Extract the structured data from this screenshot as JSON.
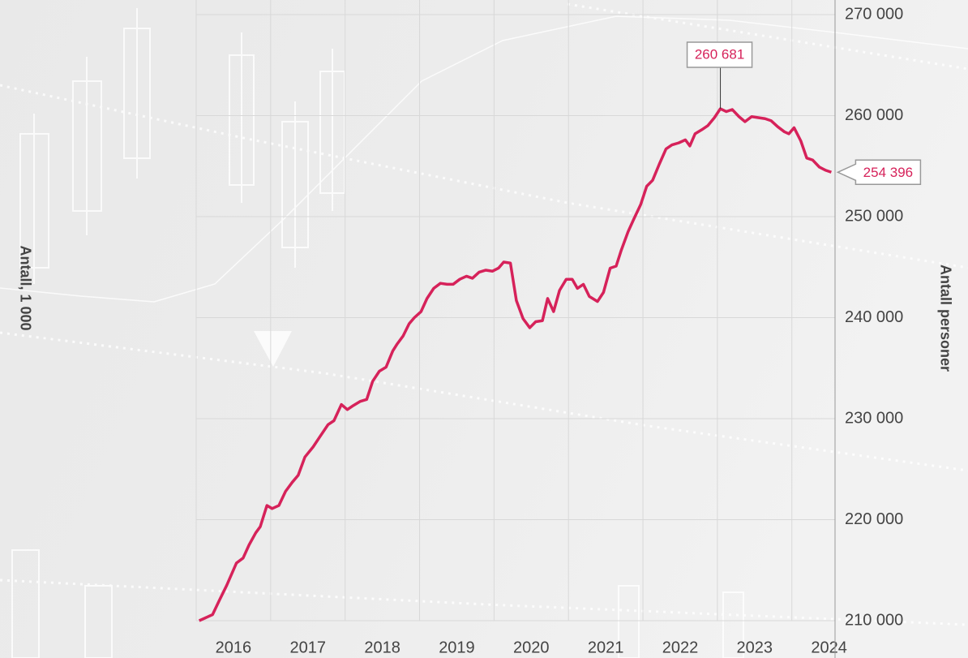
{
  "chart_data": {
    "type": "line",
    "y_label_left": "Antall, 1 000",
    "y_label_right": "Antall personer",
    "xlim": [
      2016,
      2024.58
    ],
    "ylim": [
      210000,
      270000
    ],
    "xticks": [
      {
        "value": 2016,
        "label": "2016"
      },
      {
        "value": 2017,
        "label": "2017"
      },
      {
        "value": 2018,
        "label": "2018"
      },
      {
        "value": 2019,
        "label": "2019"
      },
      {
        "value": 2020,
        "label": "2020"
      },
      {
        "value": 2021,
        "label": "2021"
      },
      {
        "value": 2022,
        "label": "2022"
      },
      {
        "value": 2023,
        "label": "2023"
      },
      {
        "value": 2024,
        "label": "2024"
      }
    ],
    "yticks": [
      {
        "value": 210000,
        "label": "210 000"
      },
      {
        "value": 220000,
        "label": "220 000"
      },
      {
        "value": 230000,
        "label": "230 000"
      },
      {
        "value": 240000,
        "label": "240 000"
      },
      {
        "value": 250000,
        "label": "250 000"
      },
      {
        "value": 260000,
        "label": "260 000"
      },
      {
        "value": 270000,
        "label": "270 000"
      }
    ],
    "grid": true,
    "series": [
      {
        "color": "#d6225a",
        "x": [
          2016.04,
          2016.22,
          2016.31,
          2016.41,
          2016.54,
          2016.63,
          2016.71,
          2016.8,
          2016.86,
          2016.95,
          2017.02,
          2017.11,
          2017.2,
          2017.29,
          2017.37,
          2017.46,
          2017.57,
          2017.66,
          2017.77,
          2017.85,
          2017.95,
          2018.03,
          2018.11,
          2018.2,
          2018.29,
          2018.37,
          2018.46,
          2018.55,
          2018.64,
          2018.7,
          2018.78,
          2018.86,
          2018.93,
          2019.02,
          2019.1,
          2019.19,
          2019.28,
          2019.37,
          2019.45,
          2019.54,
          2019.63,
          2019.71,
          2019.8,
          2019.89,
          2019.98,
          2020.06,
          2020.13,
          2020.22,
          2020.3,
          2020.39,
          2020.48,
          2020.56,
          2020.65,
          2020.72,
          2020.8,
          2020.88,
          2020.97,
          2021.05,
          2021.12,
          2021.2,
          2021.28,
          2021.39,
          2021.47,
          2021.56,
          2021.64,
          2021.71,
          2021.8,
          2021.88,
          2021.97,
          2022.05,
          2022.13,
          2022.22,
          2022.31,
          2022.39,
          2022.48,
          2022.57,
          2022.63,
          2022.7,
          2022.79,
          2022.87,
          2022.96,
          2023.04,
          2023.12,
          2023.2,
          2023.29,
          2023.37,
          2023.46,
          2023.55,
          2023.64,
          2023.72,
          2023.81,
          2023.9,
          2023.96,
          2024.03,
          2024.12,
          2024.2,
          2024.28,
          2024.37,
          2024.45,
          2024.53
        ],
        "values": [
          210000,
          210600,
          212000,
          213500,
          215700,
          216200,
          217500,
          218700,
          219300,
          221400,
          221100,
          221400,
          222800,
          223700,
          224400,
          226200,
          227200,
          228200,
          229400,
          229800,
          231400,
          230900,
          231300,
          231700,
          231900,
          233700,
          234700,
          235100,
          236700,
          237400,
          238200,
          239400,
          240000,
          240600,
          241900,
          242900,
          243400,
          243300,
          243300,
          243800,
          244100,
          243900,
          244500,
          244700,
          244600,
          244900,
          245500,
          245400,
          241700,
          239900,
          239000,
          239600,
          239700,
          241900,
          240600,
          242700,
          243800,
          243800,
          242900,
          243300,
          242100,
          241600,
          242500,
          244900,
          245100,
          246700,
          248500,
          249800,
          251200,
          253000,
          253600,
          255200,
          256700,
          257100,
          257300,
          257600,
          257000,
          258200,
          258600,
          259000,
          259800,
          260681,
          260400,
          260600,
          259900,
          259400,
          259900,
          259800,
          259700,
          259500,
          258900,
          258400,
          258200,
          258800,
          257500,
          255800,
          255600,
          254900,
          254600,
          254396
        ]
      }
    ],
    "annotations": [
      {
        "x": 2023.04,
        "value": 260681,
        "label": "260 681"
      },
      {
        "x": 2024.53,
        "value": 254396,
        "label": "254 396"
      }
    ]
  }
}
